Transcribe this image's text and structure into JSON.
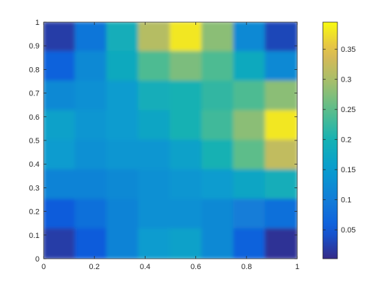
{
  "chart_data": {
    "type": "heatmap",
    "title": "",
    "xlabel": "",
    "ylabel": "",
    "xlim": [
      0,
      1
    ],
    "ylim": [
      0,
      1
    ],
    "x_ticks": [
      "0",
      "0.2",
      "0.4",
      "0.6",
      "0.8",
      "1"
    ],
    "y_ticks": [
      "0",
      "0.1",
      "0.2",
      "0.3",
      "0.4",
      "0.5",
      "0.6",
      "0.7",
      "0.8",
      "0.9",
      "1"
    ],
    "grid": false,
    "colormap": "parula",
    "colorbar": {
      "location": "right",
      "range": [
        0.002,
        0.395
      ],
      "ticks": [
        "0.05",
        "0.1",
        "0.15",
        "0.2",
        "0.25",
        "0.3",
        "0.35"
      ]
    },
    "rows_top_to_bottom": [
      [
        0.02,
        0.09,
        0.19,
        0.31,
        0.38,
        0.28,
        0.12,
        0.03
      ],
      [
        0.06,
        0.12,
        0.18,
        0.24,
        0.27,
        0.24,
        0.18,
        0.12
      ],
      [
        0.12,
        0.13,
        0.15,
        0.19,
        0.2,
        0.22,
        0.24,
        0.28
      ],
      [
        0.16,
        0.14,
        0.15,
        0.17,
        0.2,
        0.23,
        0.28,
        0.38
      ],
      [
        0.15,
        0.13,
        0.14,
        0.14,
        0.16,
        0.2,
        0.25,
        0.32
      ],
      [
        0.11,
        0.11,
        0.12,
        0.13,
        0.14,
        0.15,
        0.17,
        0.19
      ],
      [
        0.05,
        0.08,
        0.11,
        0.13,
        0.13,
        0.12,
        0.1,
        0.08
      ],
      [
        0.02,
        0.05,
        0.11,
        0.15,
        0.16,
        0.12,
        0.06,
        0.01
      ]
    ]
  }
}
